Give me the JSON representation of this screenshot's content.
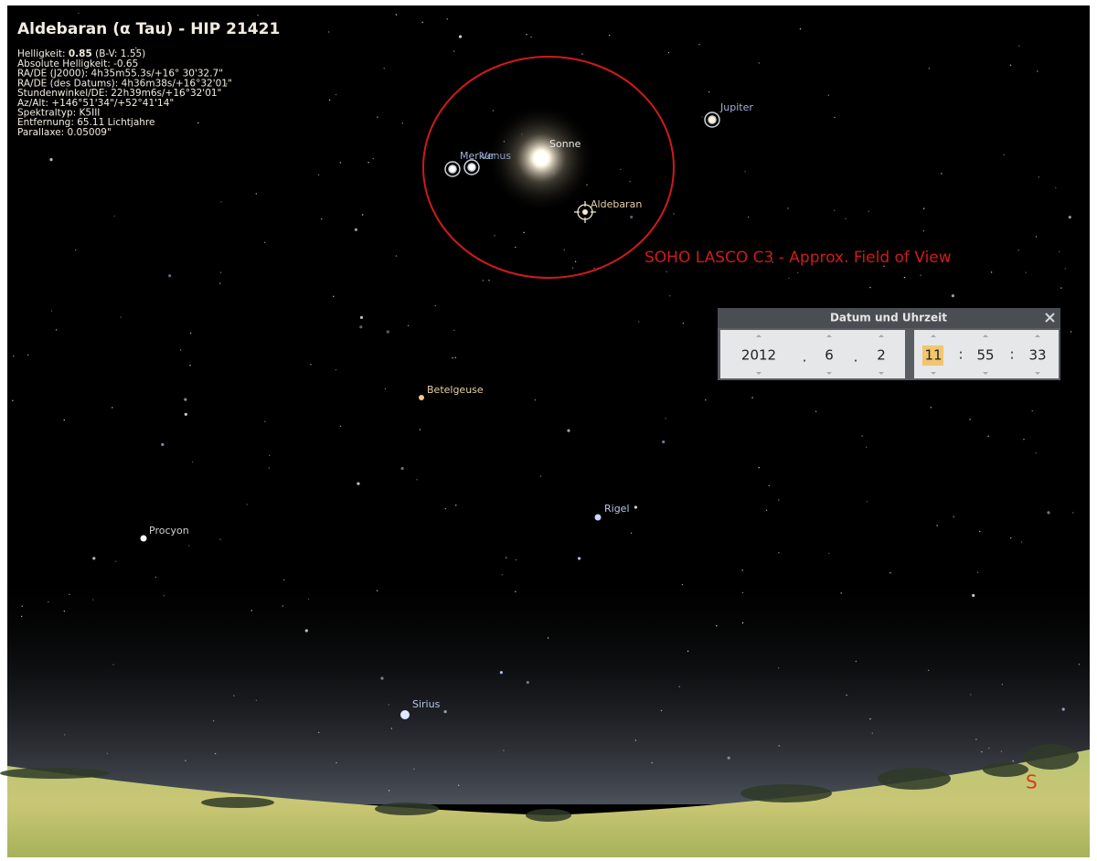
{
  "info": {
    "title": "Aldebaran (α Tau) - HIP 21421",
    "brightness": {
      "label": "Helligkeit:",
      "value": "0.85",
      "extra": "(B-V: 1.55)"
    },
    "lines": [
      "Absolute Helligkeit: -0.65",
      "RA/DE (J2000): 4h35m55.3s/+16° 30'32.7\"",
      "RA/DE (des Datums): 4h36m38s/+16°32'01\"",
      "Stundenwinkel/DE: 22h39m6s/+16°32'01\"",
      "Az/Alt: +146°51'34\"/+52°41'14\"",
      "Spektraltyp: K5III",
      "Entfernung: 65.11 Lichtjahre",
      "Parallaxe: 0.05009\""
    ]
  },
  "sky_labels": {
    "merkur": "Merkur",
    "venus": "Venus",
    "sonne": "Sonne",
    "aldebaran": "Aldebaran",
    "jupiter": "Jupiter",
    "betelgeuse": "Betelgeuse",
    "rigel": "Rigel",
    "procyon": "Procyon",
    "sirius": "Sirius"
  },
  "cardinal": "S",
  "annotation": "SOHO LASCO C3 - Approx. Field of View",
  "dialog": {
    "title": "Datum und Uhrzeit",
    "year": "2012",
    "month": "6",
    "day": "2",
    "hour": "11",
    "minute": "55",
    "second": "33",
    "date_separator": ".",
    "time_separator": ":"
  }
}
